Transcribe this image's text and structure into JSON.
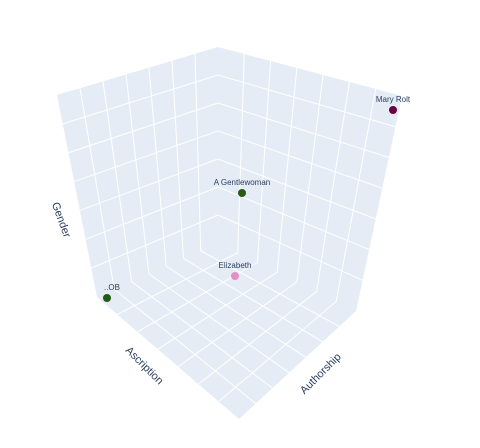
{
  "chart_data": {
    "type": "scatter3d",
    "title": "",
    "axes": {
      "x": {
        "label": "Ascription"
      },
      "y": {
        "label": "Authorship"
      },
      "z": {
        "label": "Gender"
      }
    },
    "grid": true,
    "tick_labels_shown": false,
    "background_color": "#e5ecf6",
    "points": [
      {
        "label": "Mary Rolt",
        "color": "#6b0046"
      },
      {
        "label": "A Gentlewoman",
        "color": "#2a5a14"
      },
      {
        "label": "Elizabeth",
        "color": "#e58fc4"
      },
      {
        "label": "..OB",
        "color": "#1f5c14"
      }
    ]
  }
}
